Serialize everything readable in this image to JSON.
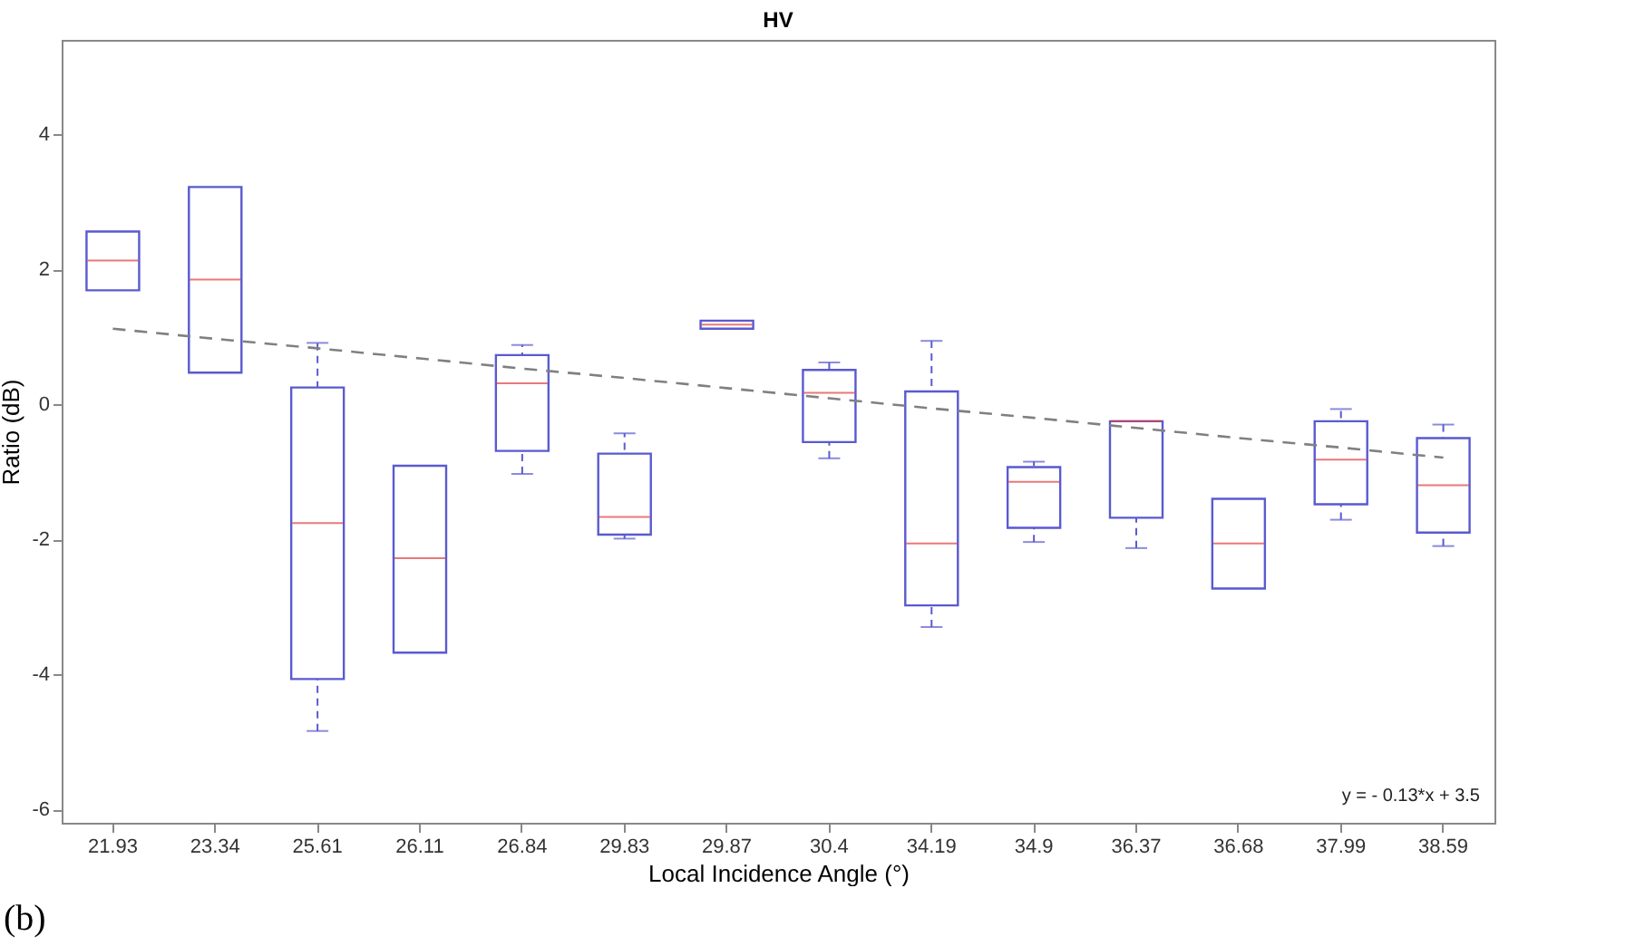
{
  "chart_data": {
    "type": "box",
    "title": "HV",
    "xlabel": "Local Incidence Angle (°)",
    "ylabel": "Ratio (dB)",
    "categories": [
      "21.93",
      "23.34",
      "25.61",
      "26.11",
      "26.84",
      "29.83",
      "29.87",
      "30.4",
      "34.19",
      "34.9",
      "36.37",
      "36.68",
      "37.99",
      "38.59"
    ],
    "ylim": [
      -6.2,
      5.4
    ],
    "yticks": [
      -6,
      -4,
      -2,
      0,
      2,
      4
    ],
    "grid": false,
    "annotations": [
      "(b)",
      "y = - 0.13*x + 3.5"
    ],
    "series": [
      {
        "color": "#5a5ad0",
        "boxes": [
          {
            "low": 1.69,
            "q1": 1.69,
            "median": 2.13,
            "q3": 2.56,
            "high": 2.56
          },
          {
            "low": 0.47,
            "q1": 0.47,
            "median": 1.85,
            "q3": 3.22,
            "high": 3.22
          },
          {
            "low": -4.84,
            "q1": -4.07,
            "median": -1.76,
            "q3": 0.25,
            "high": 0.91
          },
          {
            "low": -3.68,
            "q1": -3.68,
            "median": -2.28,
            "q3": -0.91,
            "high": -0.91
          },
          {
            "low": -1.03,
            "q1": -0.69,
            "median": 0.31,
            "q3": 0.73,
            "high": 0.88
          },
          {
            "low": -1.99,
            "q1": -1.93,
            "median": -1.67,
            "q3": -0.73,
            "high": -0.43
          },
          {
            "low": 1.12,
            "q1": 1.12,
            "median": 1.18,
            "q3": 1.24,
            "high": 1.24
          },
          {
            "low": -0.8,
            "q1": -0.56,
            "median": 0.17,
            "q3": 0.51,
            "high": 0.62
          },
          {
            "low": -3.3,
            "q1": -2.98,
            "median": -2.06,
            "q3": 0.19,
            "high": 0.94
          },
          {
            "low": -2.04,
            "q1": -1.83,
            "median": -1.15,
            "q3": -0.93,
            "high": -0.85
          },
          {
            "low": -2.13,
            "q1": -1.68,
            "median": -0.25,
            "q3": -0.25,
            "high": -0.25
          },
          {
            "low": -2.73,
            "q1": -2.73,
            "median": -2.06,
            "q3": -1.4,
            "high": -1.4
          },
          {
            "low": -1.71,
            "q1": -1.48,
            "median": -0.82,
            "q3": -0.25,
            "high": -0.07
          },
          {
            "low": -2.1,
            "q1": -1.9,
            "median": -1.2,
            "q3": -0.5,
            "high": -0.3
          }
        ]
      },
      {
        "type": "line",
        "color": "#808080",
        "line_style": "dashed",
        "marker": "none",
        "values": [
          1.12,
          0.97,
          0.83,
          0.68,
          0.53,
          0.39,
          0.24,
          0.09,
          -0.06,
          -0.2,
          -0.35,
          -0.5,
          -0.64,
          -0.79
        ]
      }
    ]
  }
}
